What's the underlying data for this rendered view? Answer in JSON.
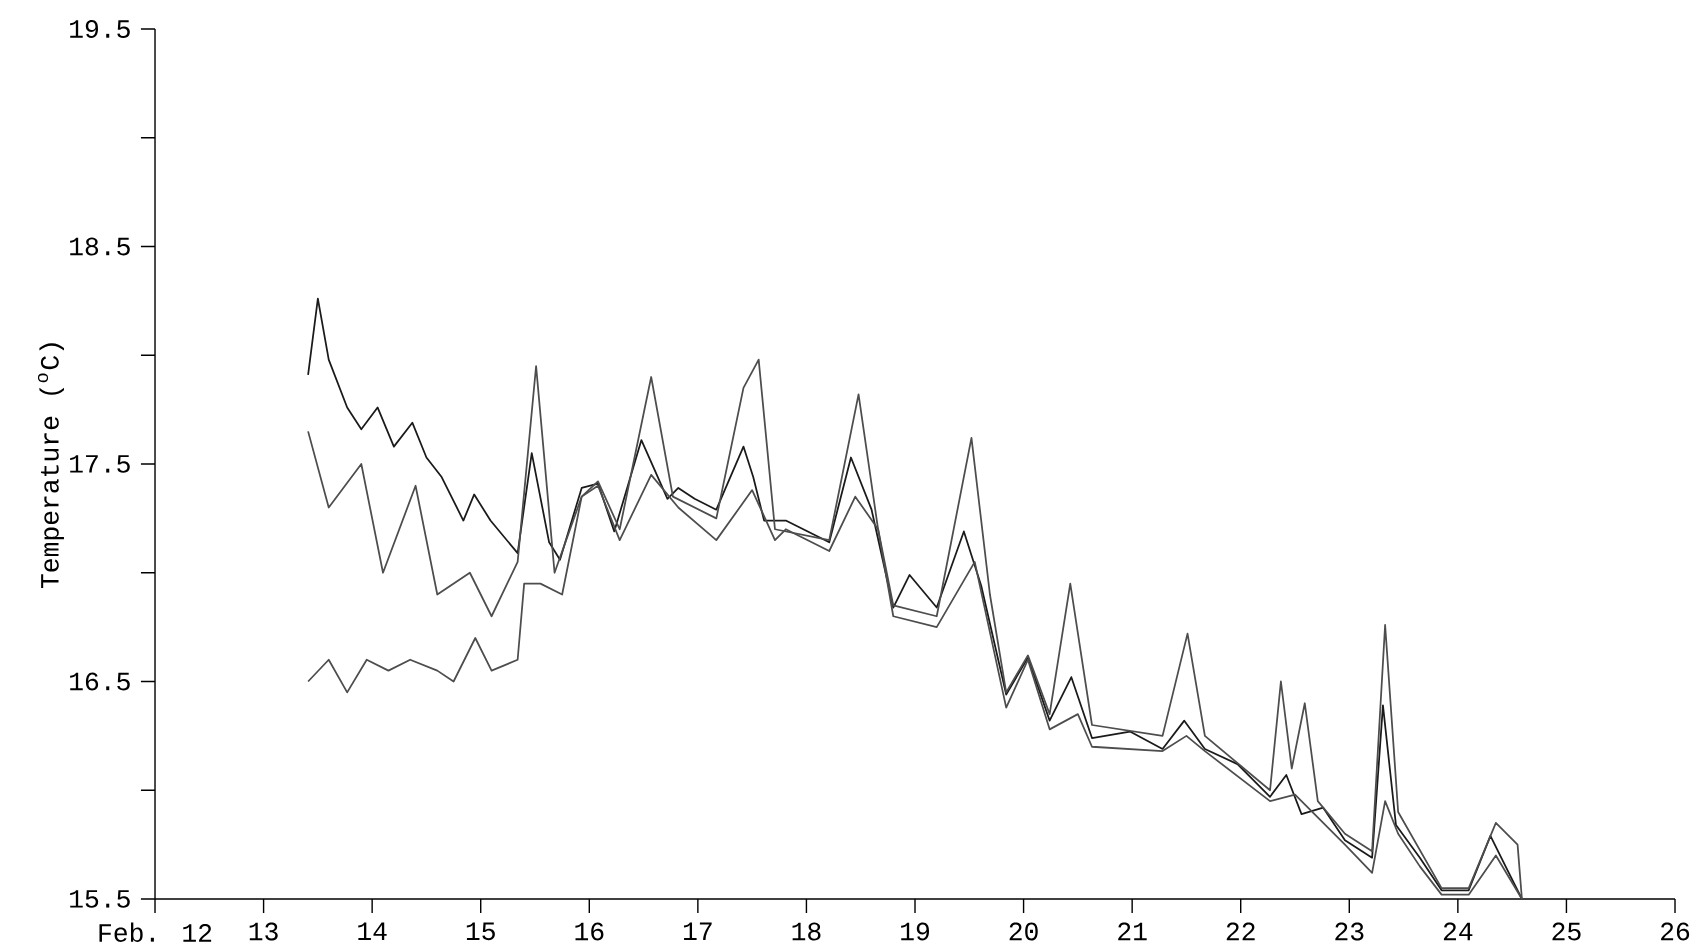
{
  "chart_data": {
    "type": "line",
    "ylabel": "Temperature ($^{o}$C)",
    "xlim": [
      12,
      26
    ],
    "ylim": [
      15.5,
      19.5
    ],
    "xticks": [
      {
        "value": 12,
        "label": "Feb. 12"
      },
      13,
      14,
      15,
      16,
      17,
      18,
      19,
      20,
      21,
      22,
      23,
      24,
      25,
      26
    ],
    "yticks": [
      15.5,
      {
        "value": 16,
        "label": null
      },
      16.5,
      {
        "value": 17,
        "label": null
      },
      17.5,
      {
        "value": 18,
        "label": null
      },
      18.5,
      {
        "value": 19,
        "label": null
      },
      19.5
    ],
    "line_style": "solid",
    "marker": "none",
    "series": [
      {
        "color": "#1a1a1a",
        "x": [
          13.41,
          13.5,
          13.6,
          13.77,
          13.9,
          14.05,
          14.2,
          14.37,
          14.5,
          14.64,
          14.84,
          14.94,
          15.09,
          15.34,
          15.47,
          15.63,
          15.73,
          15.93,
          16.08,
          16.23,
          16.48,
          16.72,
          16.82,
          16.97,
          17.17,
          17.42,
          17.51,
          17.61,
          17.81,
          18.21,
          18.41,
          18.6,
          18.8,
          18.95,
          19.2,
          19.45,
          19.61,
          19.84,
          20.04,
          20.24,
          20.44,
          20.63,
          20.98,
          21.28,
          21.48,
          21.67,
          21.97,
          22.27,
          22.42,
          22.56,
          22.76,
          22.96,
          23.21,
          23.31,
          23.43,
          23.65,
          23.85,
          24.1,
          24.3,
          24.45,
          24.59
        ],
        "values": [
          17.91,
          18.26,
          17.98,
          17.76,
          17.66,
          17.76,
          17.58,
          17.69,
          17.53,
          17.44,
          17.24,
          17.36,
          17.24,
          17.09,
          17.55,
          17.14,
          17.06,
          17.39,
          17.41,
          17.19,
          17.61,
          17.34,
          17.39,
          17.34,
          17.29,
          17.58,
          17.44,
          17.24,
          17.24,
          17.14,
          17.53,
          17.29,
          16.84,
          16.99,
          16.84,
          17.19,
          16.94,
          16.44,
          16.61,
          16.32,
          16.52,
          16.24,
          16.27,
          16.19,
          16.32,
          16.19,
          16.12,
          15.97,
          16.07,
          15.89,
          15.92,
          15.77,
          15.69,
          16.39,
          15.84,
          15.69,
          15.54,
          15.54,
          15.79,
          15.64,
          15.5
        ]
      },
      {
        "color": "#4d4d4d",
        "x": [
          13.41,
          13.6,
          13.9,
          14.1,
          14.4,
          14.6,
          14.9,
          15.1,
          15.34,
          15.51,
          15.68,
          15.93,
          16.08,
          16.28,
          16.57,
          16.77,
          17.17,
          17.42,
          17.56,
          17.71,
          18.21,
          18.48,
          18.66,
          18.8,
          19.2,
          19.52,
          19.69,
          19.84,
          20.04,
          20.24,
          20.43,
          20.63,
          21.28,
          21.51,
          21.67,
          22.27,
          22.37,
          22.47,
          22.59,
          22.71,
          22.96,
          23.21,
          23.33,
          23.45,
          23.85,
          24.1,
          24.35,
          24.55,
          24.59
        ],
        "values": [
          17.65,
          17.3,
          17.5,
          17.0,
          17.4,
          16.9,
          17.0,
          16.8,
          17.05,
          17.95,
          17.0,
          17.35,
          17.42,
          17.2,
          17.9,
          17.35,
          17.25,
          17.85,
          17.98,
          17.2,
          17.15,
          17.82,
          17.2,
          16.85,
          16.8,
          17.62,
          16.9,
          16.45,
          16.62,
          16.35,
          16.95,
          16.3,
          16.25,
          16.72,
          16.25,
          16.0,
          16.5,
          16.1,
          16.4,
          15.95,
          15.8,
          15.72,
          16.76,
          15.9,
          15.55,
          15.55,
          15.85,
          15.75,
          15.5
        ]
      },
      {
        "color": "#4d4d4d",
        "x": [
          13.41,
          13.6,
          13.77,
          13.95,
          14.15,
          14.35,
          14.6,
          14.75,
          14.95,
          15.1,
          15.34,
          15.4,
          15.55,
          15.75,
          15.93,
          16.08,
          16.28,
          16.57,
          16.82,
          17.17,
          17.5,
          17.71,
          17.81,
          18.21,
          18.45,
          18.66,
          18.8,
          19.2,
          19.55,
          19.84,
          20.04,
          20.24,
          20.5,
          20.63,
          21.28,
          21.5,
          21.67,
          22.27,
          22.5,
          22.76,
          22.96,
          23.21,
          23.33,
          23.45,
          23.65,
          23.85,
          24.1,
          24.35,
          24.59
        ],
        "values": [
          16.5,
          16.6,
          16.45,
          16.6,
          16.55,
          16.6,
          16.55,
          16.5,
          16.7,
          16.55,
          16.6,
          16.95,
          16.95,
          16.9,
          17.35,
          17.4,
          17.15,
          17.45,
          17.3,
          17.15,
          17.38,
          17.15,
          17.2,
          17.1,
          17.35,
          17.2,
          16.8,
          16.75,
          17.05,
          16.38,
          16.6,
          16.28,
          16.35,
          16.2,
          16.18,
          16.25,
          16.18,
          15.95,
          15.98,
          15.85,
          15.75,
          15.62,
          15.95,
          15.8,
          15.65,
          15.52,
          15.52,
          15.7,
          15.5
        ]
      }
    ]
  }
}
